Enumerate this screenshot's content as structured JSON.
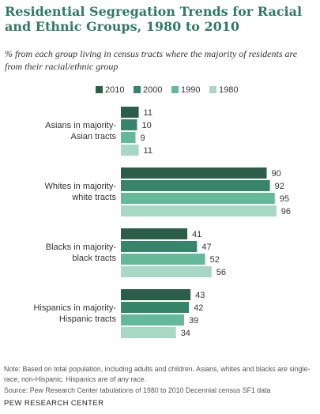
{
  "header": {
    "title": "Residential Segregation Trends for Racial and Ethnic Groups, 1980 to 2010",
    "subtitle": "% from each group living in census tracts where the majority of residents are from their racial/ethnic group"
  },
  "chart_data": {
    "type": "bar",
    "orientation": "horizontal",
    "categories": [
      [
        "Asians in majority-",
        "Asian tracts"
      ],
      [
        "Whites in majority-",
        "white tracts"
      ],
      [
        "Blacks in majority-",
        "black tracts"
      ],
      [
        "Hispanics in majority-",
        "Hispanic tracts"
      ]
    ],
    "series": [
      {
        "name": "2010",
        "color": "#2b5e4a",
        "values": [
          11,
          90,
          41,
          43
        ]
      },
      {
        "name": "2000",
        "color": "#36856b",
        "values": [
          10,
          92,
          47,
          42
        ]
      },
      {
        "name": "1990",
        "color": "#63b999",
        "values": [
          9,
          95,
          52,
          39
        ]
      },
      {
        "name": "1980",
        "color": "#a6d8c4",
        "values": [
          11,
          96,
          56,
          34
        ]
      }
    ],
    "xlim": [
      0,
      100
    ],
    "legend_position": "top",
    "grid": false,
    "data_labels": true
  },
  "footer": {
    "note": "Note: Based on total population, including adults and children. Asians, whites and blacks are single-race, non-Hispanic. Hispanics are of any race.",
    "source": "Source: Pew Research Center tabulations of 1980 to 2010 Decennial census SF1 data",
    "brand": "PEW RESEARCH CENTER"
  }
}
